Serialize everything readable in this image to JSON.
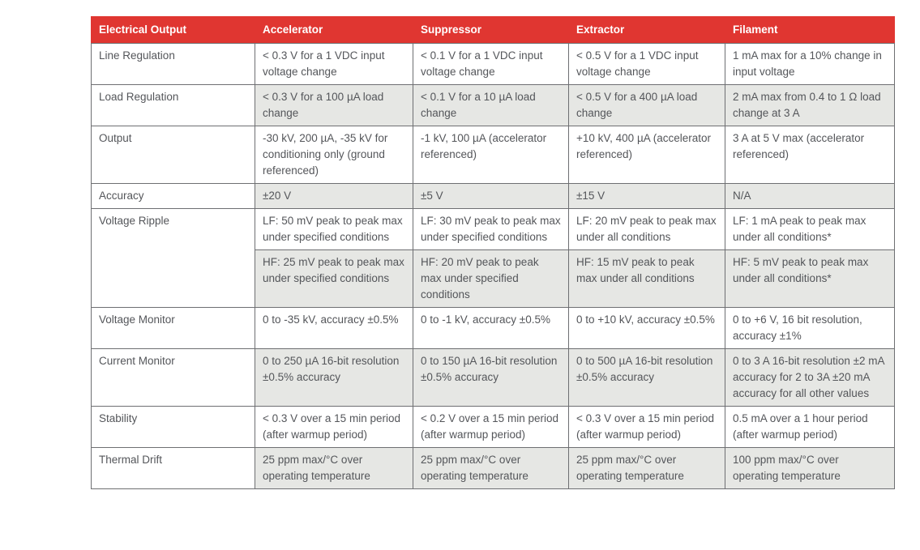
{
  "colors": {
    "header_bg": "#E03631",
    "header_text": "#FFFFFF",
    "row_shade": "#E6E7E4",
    "border": "#6E6F72",
    "text": "#54565A"
  },
  "table": {
    "columns": [
      "Electrical Output",
      "Accelerator",
      "Suppressor",
      "Extractor",
      "Filament"
    ],
    "rows": [
      {
        "label": "Line Regulation",
        "shaded": false,
        "cells": [
          "< 0.3 V for a 1 VDC input voltage change",
          "< 0.1 V for a 1 VDC input voltage change",
          "< 0.5 V for a 1 VDC input voltage change",
          "1 mA max for a 10% change in input voltage"
        ]
      },
      {
        "label": "Load Regulation",
        "shaded": true,
        "cells": [
          "< 0.3 V for a 100 µA load change",
          "< 0.1 V for a 10 µA load change",
          "< 0.5 V for a 400 µA load change",
          "2 mA max from 0.4 to 1 Ω load change at 3 A"
        ]
      },
      {
        "label": "Output",
        "shaded": false,
        "cells": [
          "-30 kV, 200 µA, -35 kV for conditioning only (ground referenced)",
          "-1 kV, 100 µA (accelerator referenced)",
          "+10 kV, 400 µA (accelerator referenced)",
          "3 A at 5 V max (accelerator referenced)"
        ]
      },
      {
        "label": "Accuracy",
        "shaded": true,
        "cells": [
          "±20 V",
          "±5 V",
          "±15 V",
          "N/A"
        ]
      },
      {
        "label": "Voltage Ripple",
        "label_rowspan": 2,
        "shaded": false,
        "cells": [
          "LF: 50 mV peak to peak max under specified conditions",
          "LF: 30 mV peak to peak max under specified conditions",
          "LF: 20 mV peak to peak max under all conditions",
          "LF: 1 mA peak to peak max under all conditions*"
        ]
      },
      {
        "label": null,
        "shaded": true,
        "cells": [
          "HF: 25 mV peak to peak max under specified conditions",
          "HF: 20 mV peak to peak max under specified conditions",
          "HF: 15 mV peak to peak max under all conditions",
          "HF: 5 mV peak to peak max under all conditions*"
        ]
      },
      {
        "label": "Voltage Monitor",
        "shaded": false,
        "cells": [
          "0 to -35 kV, accuracy ±0.5%",
          "0 to -1 kV, accuracy ±0.5%",
          "0 to +10 kV, accuracy ±0.5%",
          "0 to +6 V, 16 bit resolution, accuracy ±1%"
        ]
      },
      {
        "label": "Current Monitor",
        "shaded": true,
        "cells": [
          "0 to 250 µA 16-bit resolution ±0.5% accuracy",
          "0 to 150 µA 16-bit resolution ±0.5% accuracy",
          "0 to 500 µA 16-bit resolution ±0.5% accuracy",
          "0 to 3 A 16-bit resolution ±2 mA accuracy for 2 to 3A ±20 mA accuracy for all other values"
        ]
      },
      {
        "label": "Stability",
        "shaded": false,
        "cells": [
          "< 0.3 V over a 15 min period (after warmup period)",
          "< 0.2 V over a 15 min period (after warmup period)",
          "< 0.3 V over a 15 min period (after warmup period)",
          "0.5 mA over a 1 hour period (after warmup period)"
        ]
      },
      {
        "label": "Thermal Drift",
        "shaded": true,
        "cells": [
          "25 ppm max/°C over operating temperature",
          "25 ppm max/°C over operating temperature",
          "25 ppm max/°C over operating temperature",
          "100 ppm max/°C over operating temperature"
        ]
      }
    ]
  }
}
